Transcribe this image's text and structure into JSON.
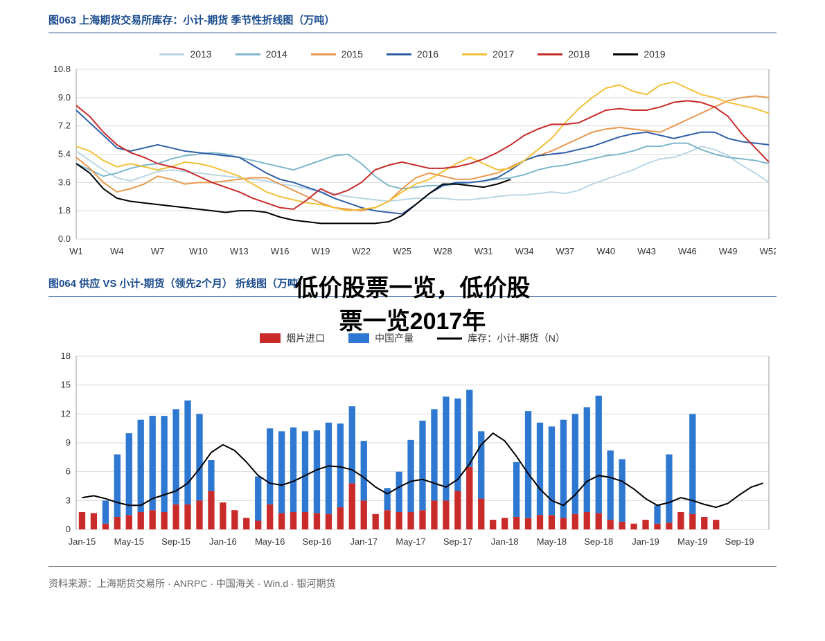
{
  "overlay": {
    "line1": "低价股票一览，低价股",
    "line2": "票一览2017年",
    "fontsize": 34,
    "top1": 378,
    "top2": 426
  },
  "chart063": {
    "title": "图063  上海期货交易所库存：小计-期货  季节性折线图（万吨）",
    "type": "line",
    "background_color": "#ffffff",
    "grid_color": "#d9d9d9",
    "title_color": "#1a4b8e",
    "title_fontsize": 15,
    "label_fontsize": 13,
    "ylim": [
      0.0,
      10.8
    ],
    "yticks": [
      0.0,
      1.8,
      3.6,
      5.4,
      7.2,
      9.0,
      10.8
    ],
    "x_labels": [
      "W1",
      "W4",
      "W7",
      "W10",
      "W13",
      "W16",
      "W19",
      "W22",
      "W25",
      "W28",
      "W31",
      "W34",
      "W37",
      "W40",
      "W43",
      "W46",
      "W49",
      "W52"
    ],
    "x_count": 52,
    "line_width": 2,
    "series": [
      {
        "name": "2013",
        "color": "#b9d6e6",
        "values": [
          5.6,
          5.0,
          4.4,
          3.9,
          3.7,
          4.0,
          4.3,
          4.4,
          4.3,
          4.2,
          4.1,
          4.0,
          3.9,
          3.8,
          3.7,
          3.5,
          3.4,
          3.2,
          3.0,
          2.9,
          2.7,
          2.6,
          2.5,
          2.4,
          2.5,
          2.6,
          2.6,
          2.6,
          2.5,
          2.5,
          2.6,
          2.7,
          2.8,
          2.8,
          2.9,
          3.0,
          2.9,
          3.1,
          3.5,
          3.8,
          4.1,
          4.4,
          4.8,
          5.1,
          5.2,
          5.5,
          5.9,
          5.7,
          5.3,
          4.7,
          4.2,
          3.6
        ]
      },
      {
        "name": "2014",
        "color": "#7db7c9",
        "values": [
          4.8,
          4.4,
          4.0,
          4.2,
          4.5,
          4.7,
          4.8,
          5.1,
          5.3,
          5.4,
          5.5,
          5.4,
          5.2,
          5.0,
          4.8,
          4.6,
          4.4,
          4.7,
          5.0,
          5.3,
          5.4,
          4.8,
          4.0,
          3.4,
          3.2,
          3.3,
          3.4,
          3.4,
          3.5,
          3.6,
          3.7,
          3.8,
          3.9,
          4.1,
          4.4,
          4.6,
          4.7,
          4.9,
          5.1,
          5.3,
          5.4,
          5.6,
          5.9,
          5.9,
          6.1,
          6.1,
          5.7,
          5.4,
          5.2,
          5.1,
          5.0,
          4.8
        ]
      },
      {
        "name": "2015",
        "color": "#e8984e",
        "values": [
          5.2,
          4.5,
          3.6,
          3.0,
          3.2,
          3.5,
          4.0,
          3.8,
          3.5,
          3.6,
          3.6,
          3.7,
          3.8,
          3.9,
          3.9,
          3.5,
          3.1,
          2.7,
          2.3,
          2.0,
          1.9,
          1.8,
          2.0,
          2.4,
          3.2,
          3.9,
          4.2,
          4.0,
          3.8,
          3.8,
          4.0,
          4.2,
          4.6,
          5.0,
          5.3,
          5.6,
          6.0,
          6.4,
          6.8,
          7.0,
          7.1,
          7.0,
          6.9,
          6.8,
          7.2,
          7.6,
          8.0,
          8.4,
          8.8,
          9.0,
          9.1,
          9.0
        ]
      },
      {
        "name": "2016",
        "color": "#2f5ea8",
        "values": [
          8.2,
          7.4,
          6.6,
          5.8,
          5.6,
          5.8,
          6.0,
          5.8,
          5.6,
          5.5,
          5.4,
          5.3,
          5.2,
          4.7,
          4.2,
          3.8,
          3.6,
          3.3,
          3.0,
          2.6,
          2.3,
          2.0,
          1.8,
          1.7,
          1.6,
          2.2,
          2.9,
          3.4,
          3.6,
          3.6,
          3.7,
          3.9,
          4.4,
          5.0,
          5.3,
          5.4,
          5.5,
          5.7,
          5.9,
          6.2,
          6.5,
          6.7,
          6.8,
          6.6,
          6.4,
          6.6,
          6.8,
          6.8,
          6.4,
          6.2,
          6.1,
          6.0
        ]
      },
      {
        "name": "2017",
        "color": "#f2c037",
        "values": [
          5.9,
          5.6,
          5.0,
          4.6,
          4.8,
          4.6,
          4.4,
          4.6,
          4.9,
          4.8,
          4.6,
          4.3,
          4.0,
          3.5,
          3.0,
          2.7,
          2.5,
          2.3,
          2.2,
          2.0,
          1.8,
          1.9,
          2.0,
          2.4,
          3.0,
          3.5,
          3.8,
          4.3,
          4.8,
          5.2,
          4.8,
          4.4,
          4.5,
          5.0,
          5.7,
          6.4,
          7.4,
          8.3,
          9.0,
          9.6,
          9.8,
          9.4,
          9.2,
          9.8,
          10.0,
          9.6,
          9.2,
          9.0,
          8.7,
          8.5,
          8.3,
          8.0
        ]
      },
      {
        "name": "2018",
        "color": "#c92a2a",
        "values": [
          8.5,
          7.8,
          6.8,
          6.0,
          5.5,
          5.2,
          4.8,
          4.6,
          4.4,
          4.0,
          3.6,
          3.3,
          3.0,
          2.6,
          2.3,
          2.0,
          1.9,
          2.5,
          3.2,
          2.8,
          3.1,
          3.6,
          4.4,
          4.7,
          4.9,
          4.7,
          4.5,
          4.5,
          4.6,
          4.8,
          5.1,
          5.5,
          6.0,
          6.6,
          7.0,
          7.3,
          7.3,
          7.4,
          7.8,
          8.2,
          8.3,
          8.2,
          8.2,
          8.4,
          8.7,
          8.8,
          8.7,
          8.4,
          7.8,
          6.7,
          5.8,
          4.9
        ]
      },
      {
        "name": "2019",
        "color": "#000000",
        "values": [
          4.8,
          4.2,
          3.2,
          2.6,
          2.4,
          2.3,
          2.2,
          2.1,
          2.0,
          1.9,
          1.8,
          1.7,
          1.8,
          1.8,
          1.7,
          1.4,
          1.2,
          1.1,
          1.0,
          1.0,
          1.0,
          1.0,
          1.0,
          1.1,
          1.5,
          2.2,
          2.9,
          3.5,
          3.5,
          3.4,
          3.3,
          3.5,
          3.8,
          null,
          null,
          null,
          null,
          null,
          null,
          null,
          null,
          null,
          null,
          null,
          null,
          null,
          null,
          null,
          null,
          null,
          null,
          null
        ]
      }
    ]
  },
  "chart064": {
    "title": "图064  供应  VS  小计-期货（领先2个月）  折线图（万吨）",
    "type": "bar+line",
    "background_color": "#ffffff",
    "grid_color": "#d9d9d9",
    "title_color": "#1a4b8e",
    "title_fontsize": 15,
    "label_fontsize": 13,
    "ylim": [
      0,
      18
    ],
    "yticks": [
      0,
      3,
      6,
      9,
      12,
      15,
      18
    ],
    "bar_width": 0.55,
    "legend": [
      {
        "name": "烟片进口",
        "color": "#c92a2a",
        "type": "box"
      },
      {
        "name": "中国产量",
        "color": "#2f78d1",
        "type": "box"
      },
      {
        "name": "库存：小计-期货（N）",
        "color": "#000000",
        "type": "line"
      }
    ],
    "x_labels": [
      "Jan-15",
      "May-15",
      "Sep-15",
      "Jan-16",
      "May-16",
      "Sep-16",
      "Jan-17",
      "May-17",
      "Sep-17",
      "Jan-18",
      "May-18",
      "Sep-18",
      "Jan-19",
      "May-19",
      "Sep-19"
    ],
    "months": 59,
    "series_red": [
      1.8,
      1.7,
      0.6,
      1.3,
      1.5,
      1.8,
      2.0,
      1.8,
      2.6,
      2.6,
      3.0,
      4.0,
      2.8,
      2.0,
      1.2,
      0.9,
      2.6,
      1.7,
      1.8,
      1.8,
      1.7,
      1.6,
      2.3,
      4.8,
      3.0,
      1.6,
      2.0,
      1.8,
      1.8,
      2.0,
      3.0,
      3.0,
      4.0,
      6.5,
      3.2,
      1.0,
      1.2,
      1.3,
      1.2,
      1.5,
      1.5,
      1.2,
      1.6,
      1.8,
      1.7,
      1.0,
      0.8,
      0.6,
      1.0,
      0.6,
      0.7,
      1.8,
      1.6,
      1.3,
      1.0,
      null,
      null,
      null,
      null
    ],
    "series_blue": [
      null,
      null,
      2.4,
      6.5,
      8.5,
      9.6,
      9.8,
      10.0,
      9.9,
      10.8,
      9.0,
      3.2,
      null,
      null,
      null,
      4.6,
      7.9,
      8.5,
      8.8,
      8.4,
      8.6,
      9.5,
      8.7,
      8.0,
      6.2,
      null,
      2.3,
      4.2,
      7.5,
      9.3,
      9.5,
      10.8,
      9.6,
      8.0,
      7.0,
      null,
      null,
      5.7,
      11.1,
      9.6,
      9.2,
      10.2,
      10.4,
      10.9,
      12.2,
      7.2,
      6.5,
      null,
      null,
      1.9,
      7.1,
      null,
      10.4,
      null,
      null,
      null,
      null,
      null,
      null
    ],
    "series_line": [
      3.3,
      3.5,
      3.2,
      2.8,
      2.5,
      2.5,
      3.2,
      3.6,
      4.0,
      4.8,
      6.3,
      8.0,
      8.8,
      8.2,
      7.0,
      5.6,
      4.8,
      4.6,
      5.0,
      5.6,
      6.2,
      6.6,
      6.5,
      6.2,
      5.4,
      4.4,
      3.7,
      4.4,
      5.0,
      5.2,
      4.8,
      4.4,
      5.2,
      6.8,
      8.8,
      10.0,
      9.2,
      7.6,
      5.8,
      4.2,
      3.0,
      2.5,
      3.6,
      5.0,
      5.6,
      5.4,
      5.0,
      4.2,
      3.2,
      2.5,
      2.8,
      3.3,
      3.0,
      2.6,
      2.3,
      2.7,
      3.6,
      4.4,
      4.8
    ]
  },
  "source": "资料来源：上海期货交易所 · ANRPC · 中国海关 · Win.d · 银河期货"
}
